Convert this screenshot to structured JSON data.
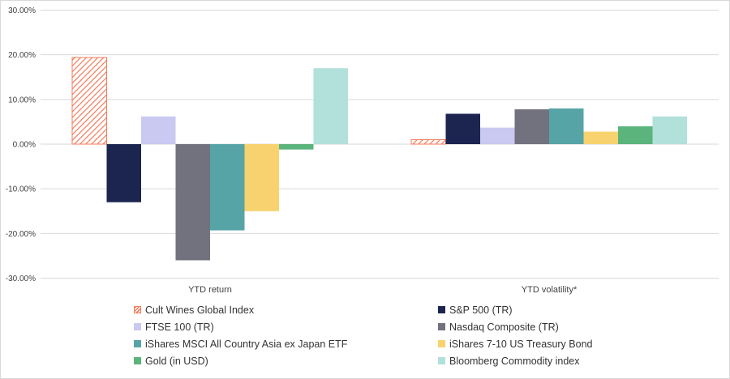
{
  "chart_data": {
    "type": "bar",
    "categories": [
      "YTD return",
      "YTD volatility*"
    ],
    "series": [
      {
        "name": "Cult Wines Global Index",
        "values": [
          19.4,
          1.0
        ],
        "color": "#f47a5a",
        "pattern": "hatch"
      },
      {
        "name": "S&P 500 (TR)",
        "values": [
          -13.0,
          6.8
        ],
        "color": "#1b2550"
      },
      {
        "name": "FTSE 100 (TR)",
        "values": [
          6.2,
          3.7
        ],
        "color": "#c9c9f2"
      },
      {
        "name": "Nasdaq Composite (TR)",
        "values": [
          -26.0,
          7.8
        ],
        "color": "#72727f"
      },
      {
        "name": "iShares MSCI All Country Asia ex Japan ETF",
        "values": [
          -19.3,
          8.0
        ],
        "color": "#56a4a5"
      },
      {
        "name": "iShares 7-10 US Treasury Bond",
        "values": [
          -15.0,
          2.8
        ],
        "color": "#f7d26e"
      },
      {
        "name": "Gold (in USD)",
        "values": [
          -1.2,
          4.0
        ],
        "color": "#5bb47b"
      },
      {
        "name": "Bloomberg Commodity index",
        "values": [
          17.0,
          6.2
        ],
        "color": "#b2e0db"
      }
    ],
    "ylim": [
      -30,
      30
    ],
    "yticks": [
      30,
      20,
      10,
      0,
      -10,
      -20,
      -30
    ],
    "ytick_labels": [
      "30.00%",
      "20.00%",
      "10.00%",
      "0.00%",
      "-10.00%",
      "-20.00%",
      "-30.00%"
    ],
    "grid": true,
    "legend_position": "bottom",
    "title": "",
    "xlabel": "",
    "ylabel": ""
  }
}
